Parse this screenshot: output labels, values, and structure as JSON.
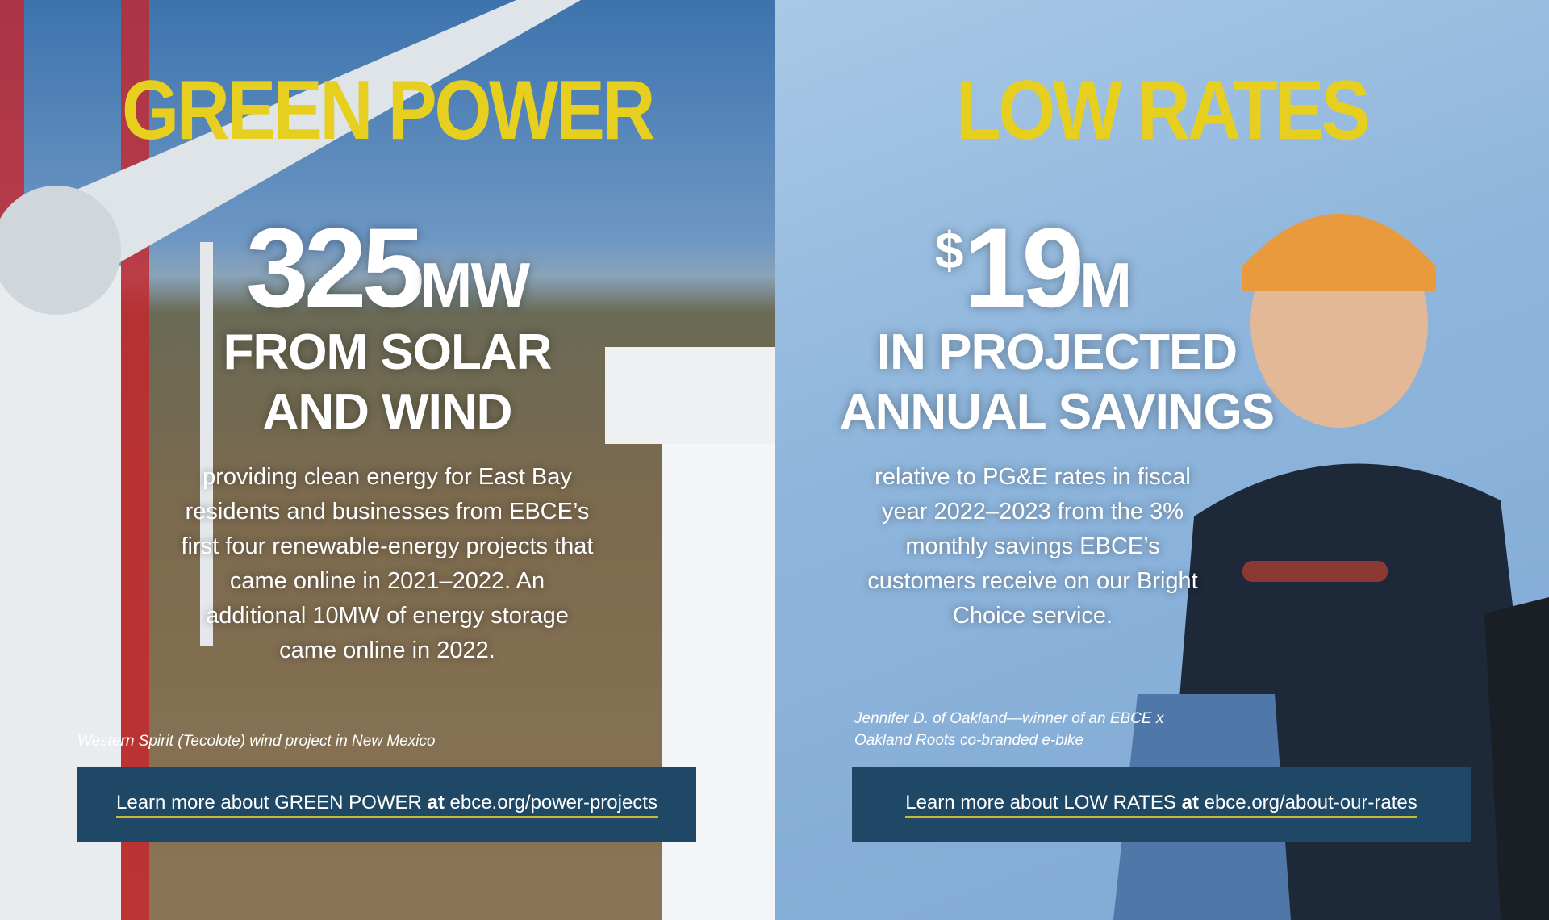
{
  "panels": [
    {
      "heading": "GREEN POWER",
      "stat_number": "325",
      "stat_unit": "MW",
      "stat_caption": "FROM SOLAR AND WIND",
      "body": "providing clean energy for East Bay residents and businesses from EBCE’s first four renewable-energy projects that came online in 2021–2022. An additional 10MW of energy storage came online in 2022.",
      "photo_caption": "Western Spirit (Tecolote) wind project in New Mexico",
      "link_prefix": "Learn more about GREEN POWER",
      "link_at": "at",
      "link_url": "ebce.org/power-projects"
    },
    {
      "heading": "LOW RATES",
      "stat_prefix": "$",
      "stat_number": "19",
      "stat_unit": "M",
      "stat_caption": "IN PROJECTED ANNUAL SAVINGS",
      "body": "relative to PG&E rates in fiscal year 2022–2023 from the 3% monthly savings EBCE’s customers receive on our Bright Choice service.",
      "photo_caption": "Jennifer D. of Oakland—winner of an EBCE x Oakland Roots co-branded e-bike",
      "link_prefix": "Learn more about LOW RATES",
      "link_at": "at",
      "link_url": "ebce.org/about-our-rates"
    }
  ]
}
